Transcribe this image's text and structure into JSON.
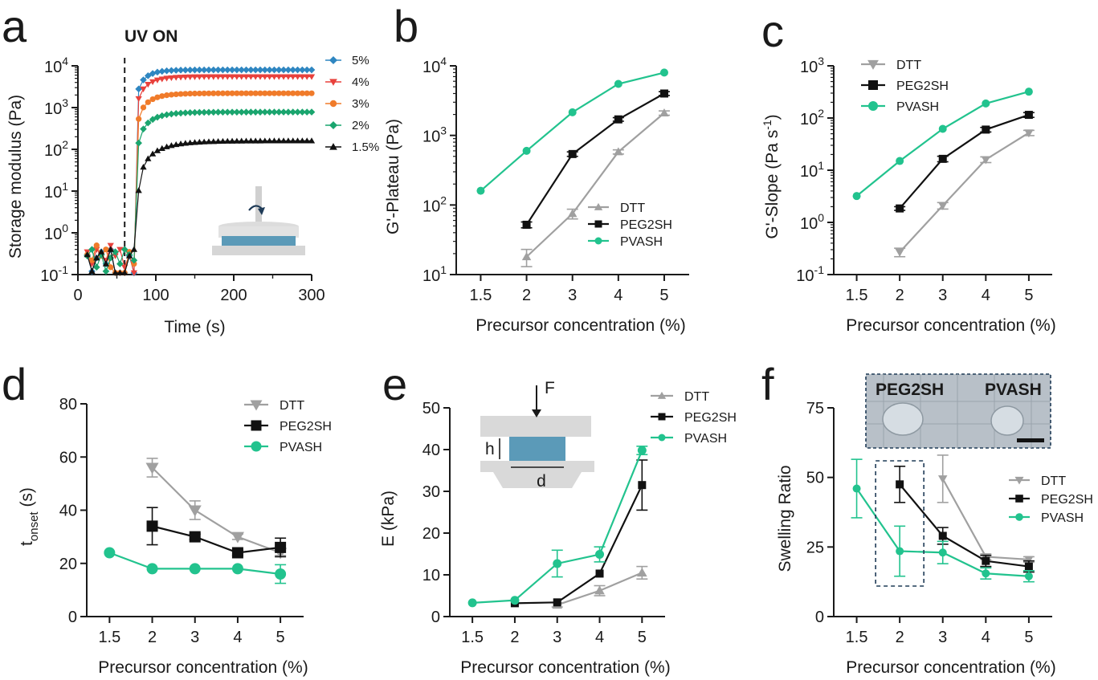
{
  "panels": [
    {
      "letter": "a",
      "chart_data": {
        "type": "scatter",
        "title": "",
        "xlabel": "Time (s)",
        "ylabel": "Storage modulus (Pa)",
        "xscale": "linear",
        "yscale": "log",
        "xlim": [
          0,
          300
        ],
        "ylim": [
          0.1,
          10000
        ],
        "xticks": [
          0,
          100,
          200,
          300
        ],
        "yticks": [
          0.1,
          1,
          10,
          100,
          1000,
          10000
        ],
        "yticklabels": [
          [
            "10",
            "-1"
          ],
          [
            "10",
            "0"
          ],
          [
            "10",
            "1"
          ],
          [
            "10",
            "2"
          ],
          [
            "10",
            "3"
          ],
          [
            "10",
            "4"
          ]
        ],
        "annotation": "UV ON",
        "uv_time": 60,
        "legend_position": "right",
        "series": [
          {
            "name": "5%",
            "color": "#2e86c1",
            "marker": "diamond",
            "plateau": 8000,
            "tonset": 72,
            "k": 14
          },
          {
            "name": "4%",
            "color": "#e8413c",
            "marker": "triangle-down",
            "plateau": 5500,
            "tonset": 72,
            "k": 17
          },
          {
            "name": "3%",
            "color": "#f07b2a",
            "marker": "circle",
            "plateau": 2200,
            "tonset": 73,
            "k": 18
          },
          {
            "name": "2%",
            "color": "#1aa56e",
            "marker": "diamond",
            "plateau": 780,
            "tonset": 74,
            "k": 20
          },
          {
            "name": "1.5%",
            "color": "#111111",
            "marker": "triangle-up",
            "plateau": 160,
            "tonset": 76,
            "k": 30
          }
        ]
      }
    },
    {
      "letter": "b",
      "chart_data": {
        "type": "line",
        "xlabel": "Precursor concentration (%)",
        "ylabel": "G'-Plateau (Pa)",
        "yscale": "log",
        "categories": [
          "1.5",
          "2",
          "3",
          "4",
          "5"
        ],
        "ylim": [
          10,
          10000
        ],
        "yticklabels": [
          [
            "10",
            "1"
          ],
          [
            "10",
            "2"
          ],
          [
            "10",
            "3"
          ],
          [
            "10",
            "4"
          ]
        ],
        "legend_position": "lower-right",
        "series": [
          {
            "name": "DTT",
            "color": "#a0a0a0",
            "marker": "triangle-up",
            "values": [
              null,
              18,
              75,
              580,
              2100
            ],
            "errors": [
              null,
              5,
              12,
              40,
              150
            ]
          },
          {
            "name": "PEG2SH",
            "color": "#111111",
            "marker": "square",
            "values": [
              null,
              52,
              540,
              1700,
              4000
            ],
            "errors": [
              null,
              5,
              40,
              100,
              250
            ]
          },
          {
            "name": "PVASH",
            "color": "#22c38e",
            "marker": "circle",
            "values": [
              160,
              600,
              2150,
              5500,
              8000
            ],
            "errors": [
              null,
              null,
              null,
              null,
              null
            ]
          }
        ]
      }
    },
    {
      "letter": "c",
      "chart_data": {
        "type": "line",
        "xlabel": "Precursor concentration (%)",
        "ylabel": "G'-Slope (Pa s-1)",
        "yscale": "log",
        "categories": [
          "1.5",
          "2",
          "3",
          "4",
          "5"
        ],
        "ylim": [
          0.1,
          1000
        ],
        "yticklabels": [
          [
            "10",
            "-1"
          ],
          [
            "10",
            "0"
          ],
          [
            "10",
            "1"
          ],
          [
            "10",
            "2"
          ],
          [
            "10",
            "3"
          ]
        ],
        "legend_position": "top-left",
        "series": [
          {
            "name": "DTT",
            "color": "#a0a0a0",
            "marker": "triangle-down",
            "values": [
              null,
              0.27,
              2.1,
              16,
              52
            ],
            "errors": [
              null,
              0.05,
              0.3,
              2,
              6
            ]
          },
          {
            "name": "PEG2SH",
            "color": "#111111",
            "marker": "square",
            "values": [
              null,
              1.85,
              16.5,
              60,
              115
            ],
            "errors": [
              null,
              0.15,
              2,
              6,
              12
            ]
          },
          {
            "name": "PVASH",
            "color": "#22c38e",
            "marker": "circle",
            "values": [
              3.2,
              15,
              62,
              190,
              320
            ],
            "errors": [
              null,
              null,
              null,
              null,
              null
            ]
          }
        ]
      }
    },
    {
      "letter": "d",
      "chart_data": {
        "type": "line",
        "xlabel": "Precursor concentration (%)",
        "ylabel": "t_onset (s)",
        "ylabel_main": "t",
        "ylabel_sub": "onset",
        "ylabel_tail": " (s)",
        "yscale": "linear",
        "categories": [
          "1.5",
          "2",
          "3",
          "4",
          "5"
        ],
        "ylim": [
          0,
          80
        ],
        "yticks": [
          0,
          20,
          40,
          60,
          80
        ],
        "legend_position": "top-right",
        "series": [
          {
            "name": "DTT",
            "color": "#a0a0a0",
            "marker": "triangle-down",
            "values": [
              null,
              56,
              40,
              30,
              24
            ],
            "errors": [
              null,
              3.5,
              3.5,
              1,
              1
            ]
          },
          {
            "name": "PEG2SH",
            "color": "#111111",
            "marker": "square",
            "values": [
              null,
              34,
              30,
              24,
              26
            ],
            "errors": [
              null,
              7,
              1,
              1,
              3.5
            ]
          },
          {
            "name": "PVASH",
            "color": "#22c38e",
            "marker": "circle",
            "values": [
              24,
              18,
              18,
              18,
              16
            ],
            "errors": [
              null,
              null,
              null,
              null,
              3.5
            ]
          }
        ]
      }
    },
    {
      "letter": "e",
      "chart_data": {
        "type": "line",
        "xlabel": "Precursor concentration (%)",
        "ylabel": "E (kPa)",
        "yscale": "linear",
        "categories": [
          "1.5",
          "2",
          "3",
          "4",
          "5"
        ],
        "ylim": [
          0,
          50
        ],
        "yticks": [
          0,
          10,
          20,
          30,
          40,
          50
        ],
        "legend_position": "top-right",
        "inset_labels": {
          "force": "F",
          "height": "h",
          "diameter": "d"
        },
        "series": [
          {
            "name": "DTT",
            "color": "#a0a0a0",
            "marker": "triangle-up",
            "values": [
              null,
              null,
              2.8,
              6.2,
              10.5
            ],
            "errors": [
              null,
              null,
              0.5,
              1.2,
              1.5
            ]
          },
          {
            "name": "PEG2SH",
            "color": "#111111",
            "marker": "square",
            "values": [
              null,
              3.2,
              3.4,
              10.3,
              31.5
            ],
            "errors": [
              null,
              null,
              null,
              null,
              6
            ]
          },
          {
            "name": "PVASH",
            "color": "#22c38e",
            "marker": "circle",
            "values": [
              3.3,
              3.9,
              12.7,
              14.9,
              39.8
            ],
            "errors": [
              null,
              null,
              3.2,
              1.8,
              1
            ]
          }
        ]
      }
    },
    {
      "letter": "f",
      "chart_data": {
        "type": "line",
        "xlabel": "Precursor concentration (%)",
        "ylabel": "Swelling Ratio",
        "yscale": "linear",
        "categories": [
          "1.5",
          "2",
          "3",
          "4",
          "5"
        ],
        "ylim": [
          0,
          75
        ],
        "yticks": [
          0,
          25,
          50,
          75
        ],
        "legend_position": "right",
        "photo_labels": [
          "PEG2SH",
          "PVASH"
        ],
        "series": [
          {
            "name": "DTT",
            "color": "#a0a0a0",
            "marker": "triangle-down",
            "values": [
              null,
              null,
              49.5,
              21.5,
              20.5
            ],
            "errors": [
              null,
              null,
              8.5,
              1,
              1
            ]
          },
          {
            "name": "PEG2SH",
            "color": "#111111",
            "marker": "square",
            "values": [
              null,
              47.5,
              29,
              20,
              18
            ],
            "errors": [
              null,
              6.5,
              3,
              2,
              2
            ]
          },
          {
            "name": "PVASH",
            "color": "#22c38e",
            "marker": "circle",
            "values": [
              46,
              23.5,
              23,
              15.5,
              14.5
            ],
            "errors": [
              10.5,
              9,
              4,
              2,
              2
            ]
          }
        ]
      }
    }
  ]
}
